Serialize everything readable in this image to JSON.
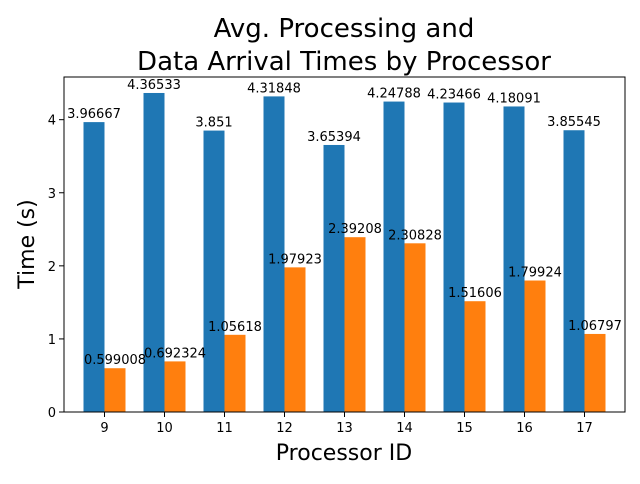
{
  "chart_data": {
    "type": "bar",
    "title": "Avg. Processing and\nData Arrival Times by Processor",
    "xlabel": "Processor ID",
    "ylabel": "Time (s)",
    "categories": [
      "9",
      "10",
      "11",
      "12",
      "13",
      "14",
      "15",
      "16",
      "17"
    ],
    "series": [
      {
        "color": "#1f77b4",
        "values": [
          3.96667,
          4.36533,
          3.851,
          4.31848,
          3.65394,
          4.24788,
          4.23466,
          4.18091,
          3.85545
        ],
        "labels": [
          "3.96667",
          "4.36533",
          "3.851",
          "4.31848",
          "3.65394",
          "4.24788",
          "4.23466",
          "4.18091",
          "3.85545"
        ]
      },
      {
        "color": "#ff7f0e",
        "values": [
          0.599008,
          0.692324,
          1.05618,
          1.97923,
          2.39208,
          2.30828,
          1.51606,
          1.79924,
          1.06797
        ],
        "labels": [
          "0.599008",
          "0.692324",
          "1.05618",
          "1.97923",
          "2.39208",
          "2.30828",
          "1.51606",
          "1.79924",
          "1.06797"
        ]
      }
    ],
    "ylim": [
      0,
      4.584
    ],
    "yticks": [
      "0",
      "1",
      "2",
      "3",
      "4"
    ],
    "grid": false,
    "legend": "none"
  }
}
